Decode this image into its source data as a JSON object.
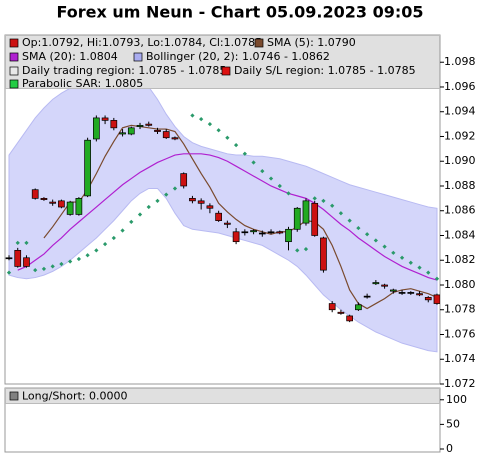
{
  "chart_data": [
    {
      "type": "candlestick",
      "title": "Forex um Neun - Chart 05.09.2023 09:05",
      "ylim": [
        1.072,
        1.1002
      ],
      "yticks": [
        1.072,
        1.074,
        1.076,
        1.078,
        {
          "value": 1.08,
          "label": "1.080"
        },
        1.082,
        1.084,
        1.086,
        1.088,
        {
          "value": 1.09,
          "label": "1.090"
        },
        1.092,
        1.094,
        1.096,
        1.098
      ],
      "candles": {
        "name": "Op:1.0792, Hi:1.0793, Lo:1.0784, Cl:1.0785",
        "up_color": "#22aa22",
        "down_color": "#cc1111",
        "open": [
          1.0822,
          1.0828,
          1.0822,
          1.0877,
          1.087,
          1.0867,
          1.0868,
          1.0857,
          1.0857,
          1.0872,
          1.0918,
          1.0935,
          1.0933,
          1.0922,
          1.0922,
          1.0928,
          1.093,
          1.0925,
          1.0924,
          1.0919,
          1.089,
          1.087,
          1.0868,
          1.0864,
          1.0858,
          1.085,
          1.0843,
          1.0843,
          1.0843,
          1.0842,
          1.0843,
          1.0843,
          1.0835,
          1.0845,
          1.085,
          1.0866,
          1.0838,
          1.0785,
          1.0778,
          1.0775,
          1.078,
          1.0791,
          1.0801,
          1.08,
          1.0795,
          1.0794,
          1.0794,
          1.0793,
          1.079,
          1.0792
        ],
        "high": [
          1.0824,
          1.083,
          1.0824,
          1.0878,
          1.0871,
          1.0869,
          1.0869,
          1.0868,
          1.0871,
          1.0919,
          1.0937,
          1.0937,
          1.0935,
          1.0926,
          1.0928,
          1.0931,
          1.0932,
          1.0927,
          1.0926,
          1.092,
          1.0891,
          1.0872,
          1.087,
          1.0866,
          1.086,
          1.0852,
          1.0846,
          1.0845,
          1.0845,
          1.0844,
          1.0845,
          1.0844,
          1.0847,
          1.0863,
          1.087,
          1.0868,
          1.0839,
          1.0787,
          1.078,
          1.0776,
          1.0786,
          1.0793,
          1.0804,
          1.0801,
          1.0797,
          1.0796,
          1.0795,
          1.0795,
          1.0791,
          1.0793
        ],
        "low": [
          1.082,
          1.0814,
          1.0814,
          1.0869,
          1.0868,
          1.0864,
          1.0862,
          1.0856,
          1.0856,
          1.0871,
          1.0916,
          1.093,
          1.0925,
          1.092,
          1.0921,
          1.0926,
          1.0928,
          1.0922,
          1.0918,
          1.0917,
          1.0878,
          1.0866,
          1.0861,
          1.0858,
          1.0851,
          1.0846,
          1.0833,
          1.084,
          1.0841,
          1.0839,
          1.0841,
          1.0841,
          1.0828,
          1.0843,
          1.0848,
          1.0839,
          1.081,
          1.0778,
          1.0776,
          1.077,
          1.0779,
          1.0789,
          1.08,
          1.0797,
          1.0793,
          1.0792,
          1.0792,
          1.0791,
          1.0786,
          1.0784
        ],
        "close": [
          1.0822,
          1.0815,
          1.0815,
          1.087,
          1.0869,
          1.0866,
          1.0863,
          1.0867,
          1.087,
          1.0917,
          1.0935,
          1.0933,
          1.0927,
          1.0923,
          1.0927,
          1.0929,
          1.0929,
          1.0924,
          1.0919,
          1.0918,
          1.088,
          1.0868,
          1.0866,
          1.0862,
          1.0852,
          1.0849,
          1.0835,
          1.0843,
          1.0844,
          1.0842,
          1.0843,
          1.0842,
          1.0845,
          1.0862,
          1.0868,
          1.084,
          1.0812,
          1.078,
          1.0777,
          1.0771,
          1.0784,
          1.0791,
          1.0802,
          1.0799,
          1.0796,
          1.0794,
          1.0794,
          1.0792,
          1.0788,
          1.0785
        ]
      },
      "series": [
        {
          "name": "SMA (5): 1.0790",
          "color": "#7a4a2e",
          "values": [
            null,
            null,
            null,
            null,
            1.0838,
            1.0847,
            1.0857,
            1.0867,
            1.0867,
            1.0877,
            1.089,
            1.0904,
            1.0916,
            1.0927,
            1.0929,
            1.0928,
            1.0927,
            1.0926,
            1.0926,
            1.0924,
            1.0914,
            1.0902,
            1.089,
            1.0879,
            1.0866,
            1.0859,
            1.0853,
            1.0848,
            1.0845,
            1.0843,
            1.0841,
            1.0843,
            1.0843,
            1.0847,
            1.0852,
            1.0851,
            1.0845,
            1.0832,
            1.0815,
            1.0796,
            1.0785,
            1.0781,
            1.0785,
            1.0789,
            1.0794,
            1.0796,
            1.0797,
            1.0795,
            1.0793,
            1.079
          ]
        },
        {
          "name": "SMA (20): 1.0804",
          "color": "#b020d0",
          "values": [
            null,
            1.0812,
            1.0815,
            1.082,
            1.0825,
            1.0832,
            1.0838,
            1.0845,
            1.0851,
            1.0857,
            1.0863,
            1.0869,
            1.0875,
            1.0881,
            1.0886,
            1.0891,
            1.0895,
            1.0899,
            1.0902,
            1.0905,
            1.0906,
            1.0906,
            1.0906,
            1.0905,
            1.0903,
            1.09,
            1.0896,
            1.0892,
            1.0888,
            1.0884,
            1.088,
            1.0877,
            1.0874,
            1.0872,
            1.087,
            1.0866,
            1.0861,
            1.0855,
            1.0849,
            1.0844,
            1.0838,
            1.0833,
            1.0828,
            1.0823,
            1.0819,
            1.0815,
            1.0812,
            1.0809,
            1.0806,
            1.0804
          ]
        }
      ],
      "bollinger": {
        "name": "Bollinger (20, 2): 1.0746 - 1.0862",
        "color": "#d4d6fa",
        "legend_color": "#a9acf0",
        "upper": [
          1.0905,
          1.0915,
          1.0925,
          1.0935,
          1.0943,
          1.095,
          1.0955,
          1.0959,
          1.0962,
          1.0965,
          1.097,
          1.0972,
          1.0973,
          1.0972,
          1.097,
          1.0966,
          1.096,
          1.095,
          1.0938,
          1.0928,
          1.092,
          1.0915,
          1.0912,
          1.091,
          1.0908,
          1.0906,
          1.0905,
          1.0905,
          1.0904,
          1.0904,
          1.0903,
          1.0902,
          1.09,
          1.0898,
          1.0896,
          1.0893,
          1.089,
          1.0887,
          1.0884,
          1.0881,
          1.0879,
          1.0877,
          1.0875,
          1.0873,
          1.0871,
          1.0869,
          1.0867,
          1.0865,
          1.0863,
          1.0862
        ],
        "lower": [
          1.0808,
          1.0806,
          1.0805,
          1.0806,
          1.0808,
          1.0811,
          1.0815,
          1.082,
          1.0826,
          1.0832,
          1.0838,
          1.0845,
          1.0852,
          1.086,
          1.0868,
          1.0874,
          1.0878,
          1.0878,
          1.087,
          1.0858,
          1.0848,
          1.0845,
          1.0844,
          1.0843,
          1.0842,
          1.084,
          1.0838,
          1.0836,
          1.0834,
          1.0832,
          1.0828,
          1.0824,
          1.082,
          1.0815,
          1.0808,
          1.08,
          1.0792,
          1.0786,
          1.078,
          1.0775,
          1.077,
          1.0766,
          1.0762,
          1.0759,
          1.0756,
          1.0753,
          1.0751,
          1.0749,
          1.0747,
          1.0746
        ]
      },
      "daily_trading_region": {
        "name": "Daily trading region: 1.0785 - 1.0785",
        "color": "#e8e8e8"
      },
      "daily_sl_region": {
        "name": "Daily S/L region: 1.0785 - 1.0785",
        "color": "#dd1111"
      },
      "sar": {
        "name": "Parabolic SAR: 1.0805",
        "color": "#2a9a6a",
        "legend_color": "#22cc44",
        "values": [
          1.081,
          1.0834,
          1.0834,
          1.0812,
          1.0813,
          1.0815,
          1.0817,
          1.0819,
          1.0821,
          1.0824,
          1.0828,
          1.0833,
          1.0838,
          1.0844,
          1.0851,
          1.0857,
          1.0863,
          1.0868,
          1.0873,
          1.0878,
          1.0882,
          1.0937,
          1.0934,
          1.093,
          1.0925,
          1.0919,
          1.0913,
          1.0906,
          1.0899,
          1.0892,
          1.0886,
          1.088,
          1.0874,
          1.0828,
          1.0829,
          1.087,
          1.0868,
          1.0864,
          1.0858,
          1.0852,
          1.0846,
          1.0841,
          1.0836,
          1.0831,
          1.0826,
          1.0822,
          1.0818,
          1.0814,
          1.081,
          1.0805
        ]
      }
    },
    {
      "type": "line",
      "ylim": [
        0,
        130
      ],
      "yticks": [
        0,
        50,
        100
      ],
      "series": [
        {
          "name": "Long/Short: 0.0000",
          "color": "#808080",
          "values": []
        }
      ]
    }
  ]
}
